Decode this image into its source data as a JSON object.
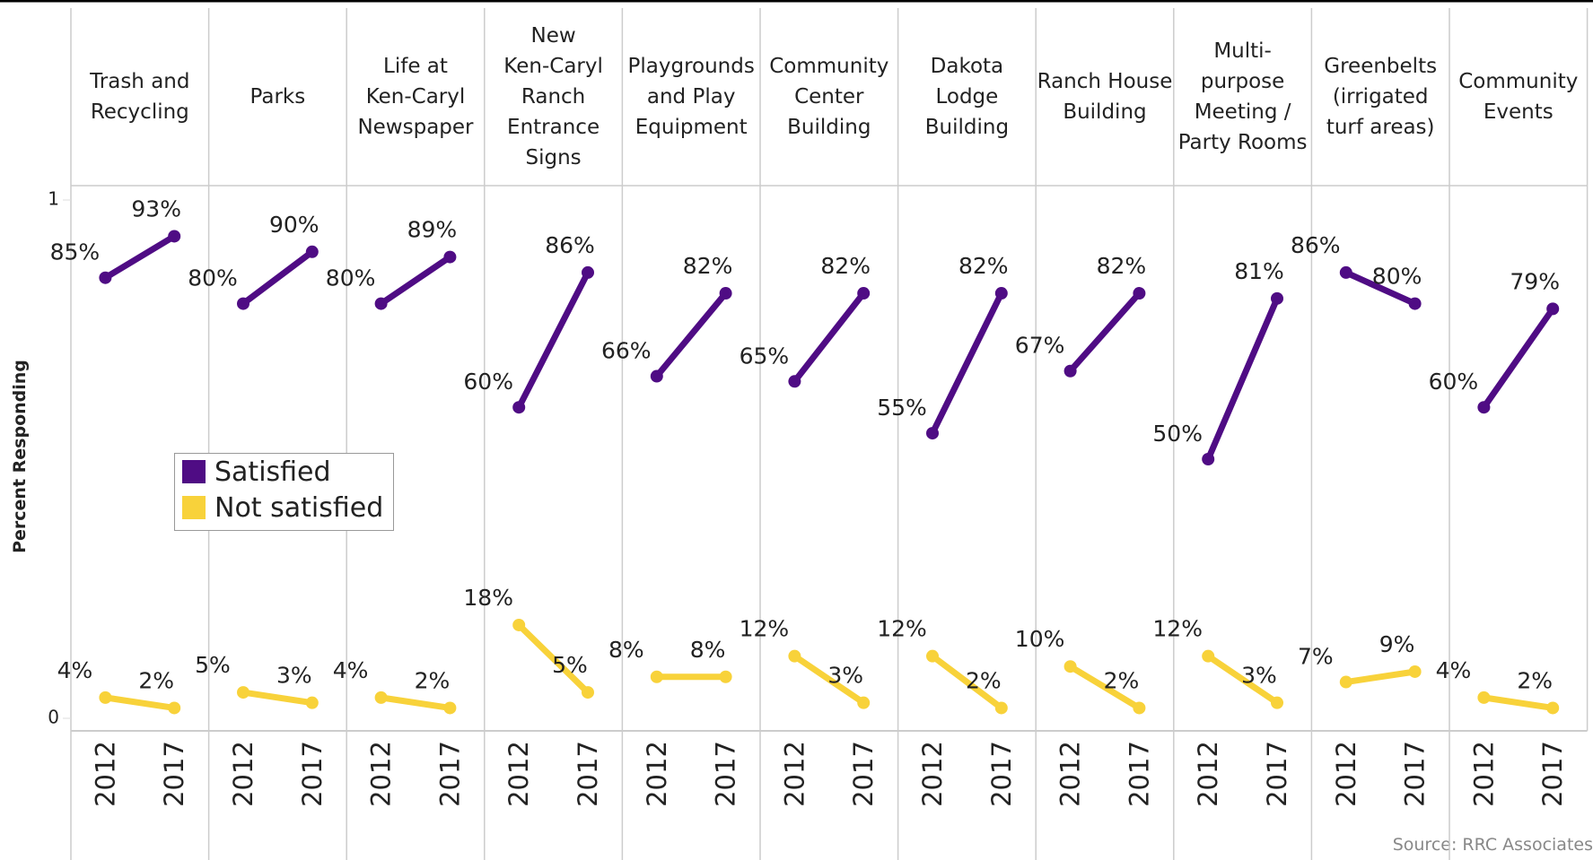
{
  "chart_data": {
    "type": "line",
    "y_label": "Percent Responding",
    "source": "Source: RRC Associates",
    "ylim": [
      0,
      1
    ],
    "yticks": [
      0,
      1
    ],
    "categories": [
      "2012",
      "2017"
    ],
    "legend": "left",
    "series": [
      {
        "name": "Satisfied",
        "color": "#4f0c84"
      },
      {
        "name": "Not satisfied",
        "color": "#f8d23a"
      }
    ],
    "panels": [
      {
        "title": "Trash and\nRecycling",
        "values": [
          [
            0.85,
            0.93
          ],
          [
            0.04,
            0.02
          ]
        ],
        "value_labels": [
          [
            "85%",
            "93%"
          ],
          [
            "4%",
            "2%"
          ]
        ]
      },
      {
        "title": "Parks",
        "values": [
          [
            0.8,
            0.9
          ],
          [
            0.05,
            0.03
          ]
        ],
        "value_labels": [
          [
            "80%",
            "90%"
          ],
          [
            "5%",
            "3%"
          ]
        ]
      },
      {
        "title": "Life at\nKen-Caryl\nNewspaper",
        "values": [
          [
            0.8,
            0.89
          ],
          [
            0.04,
            0.02
          ]
        ],
        "value_labels": [
          [
            "80%",
            "89%"
          ],
          [
            "4%",
            "2%"
          ]
        ]
      },
      {
        "title": "New\nKen-Caryl\nRanch\nEntrance\nSigns",
        "values": [
          [
            0.6,
            0.86
          ],
          [
            0.18,
            0.05
          ]
        ],
        "value_labels": [
          [
            "60%",
            "86%"
          ],
          [
            "18%",
            "5%"
          ]
        ]
      },
      {
        "title": "Playgrounds\nand Play\nEquipment",
        "values": [
          [
            0.66,
            0.82
          ],
          [
            0.08,
            0.08
          ]
        ],
        "value_labels": [
          [
            "66%",
            "82%"
          ],
          [
            "8%",
            "8%"
          ]
        ]
      },
      {
        "title": "Community\nCenter\nBuilding",
        "values": [
          [
            0.65,
            0.82
          ],
          [
            0.12,
            0.03
          ]
        ],
        "value_labels": [
          [
            "65%",
            "82%"
          ],
          [
            "12%",
            "3%"
          ]
        ]
      },
      {
        "title": "Dakota\nLodge\nBuilding",
        "values": [
          [
            0.55,
            0.82
          ],
          [
            0.12,
            0.02
          ]
        ],
        "value_labels": [
          [
            "55%",
            "82%"
          ],
          [
            "12%",
            "2%"
          ]
        ]
      },
      {
        "title": "Ranch House\nBuilding",
        "values": [
          [
            0.67,
            0.82
          ],
          [
            0.1,
            0.02
          ]
        ],
        "value_labels": [
          [
            "67%",
            "82%"
          ],
          [
            "10%",
            "2%"
          ]
        ]
      },
      {
        "title": "Multi-\npurpose\nMeeting /\nParty Rooms",
        "values": [
          [
            0.5,
            0.81
          ],
          [
            0.12,
            0.03
          ]
        ],
        "value_labels": [
          [
            "50%",
            "81%"
          ],
          [
            "12%",
            "3%"
          ]
        ]
      },
      {
        "title": "Greenbelts\n(irrigated\nturf areas)",
        "values": [
          [
            0.86,
            0.8
          ],
          [
            0.07,
            0.09
          ]
        ],
        "value_labels": [
          [
            "86%",
            "80%"
          ],
          [
            "7%",
            "9%"
          ]
        ]
      },
      {
        "title": "Community\nEvents",
        "values": [
          [
            0.6,
            0.79
          ],
          [
            0.04,
            0.02
          ]
        ],
        "value_labels": [
          [
            "60%",
            "79%"
          ],
          [
            "4%",
            "2%"
          ]
        ]
      }
    ]
  }
}
